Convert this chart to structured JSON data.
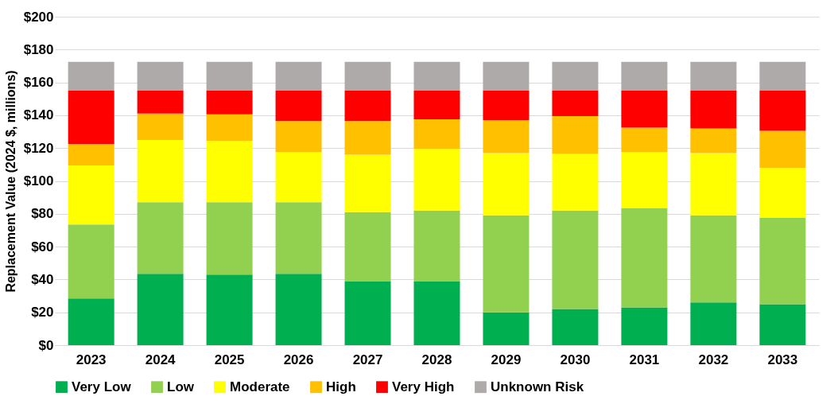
{
  "chart_data": {
    "type": "bar",
    "stacked": true,
    "ylabel": "Replacement Value (2024 $, millions)",
    "categories": [
      "2023",
      "2024",
      "2025",
      "2026",
      "2027",
      "2028",
      "2029",
      "2030",
      "2031",
      "2032",
      "2033"
    ],
    "series": [
      {
        "name": "Very Low",
        "color": "#00b050",
        "values": [
          28.5,
          43.5,
          43,
          43.5,
          39,
          39,
          20,
          22,
          23,
          26,
          25
        ]
      },
      {
        "name": "Low",
        "color": "#92d050",
        "values": [
          45,
          43.5,
          44,
          43.5,
          42,
          43,
          59,
          60,
          60.5,
          53,
          52.5
        ]
      },
      {
        "name": "Moderate",
        "color": "#ffff00",
        "values": [
          36,
          38,
          37.5,
          30.5,
          35,
          37.5,
          38,
          34.5,
          34,
          38,
          30.5
        ]
      },
      {
        "name": "High",
        "color": "#ffc000",
        "values": [
          13,
          16,
          16,
          19,
          20.5,
          18,
          20,
          23,
          15,
          15,
          22.5
        ]
      },
      {
        "name": "Very High",
        "color": "#ff0000",
        "values": [
          32.5,
          14,
          14.5,
          18.5,
          18.5,
          17.5,
          18,
          15.5,
          22.5,
          23,
          24.5
        ]
      },
      {
        "name": "Unknown Risk",
        "color": "#aeaaaa",
        "values": [
          17.5,
          17.5,
          17.5,
          17.5,
          17.5,
          17.5,
          17.5,
          17.5,
          17.5,
          17.5,
          17.5
        ]
      }
    ],
    "ylim": [
      0,
      200
    ],
    "yticks": [
      {
        "value": 0,
        "label": "$0"
      },
      {
        "value": 20,
        "label": "$20"
      },
      {
        "value": 40,
        "label": "$40"
      },
      {
        "value": 60,
        "label": "$60"
      },
      {
        "value": 80,
        "label": "$80"
      },
      {
        "value": 100,
        "label": "$100"
      },
      {
        "value": 120,
        "label": "$120"
      },
      {
        "value": 140,
        "label": "$140"
      },
      {
        "value": 160,
        "label": "$160"
      },
      {
        "value": 180,
        "label": "$180"
      },
      {
        "value": 200,
        "label": "$200"
      }
    ],
    "grid": "y",
    "legend": "bottom"
  }
}
